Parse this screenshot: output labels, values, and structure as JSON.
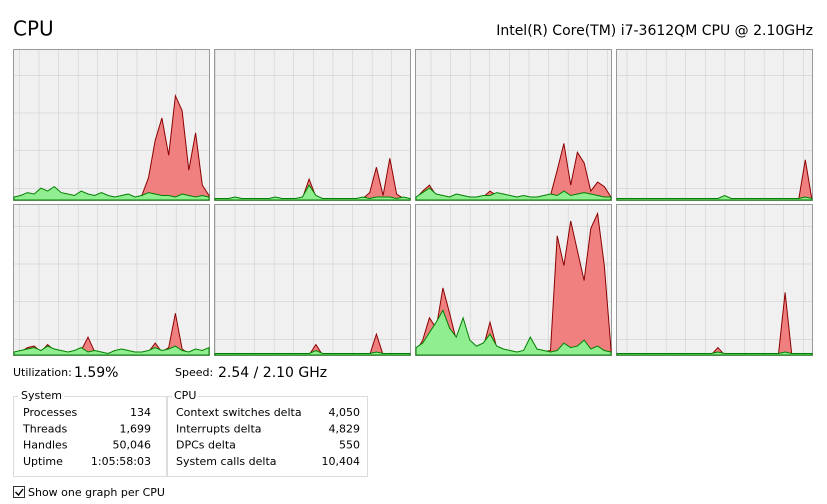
{
  "header": {
    "title": "CPU",
    "processor": "Intel(R) Core(TM) i7-3612QM CPU @ 2.10GHz"
  },
  "chart_data": [
    {
      "type": "area",
      "ylim": [
        0,
        100
      ],
      "series": [
        {
          "color": "#8b0000",
          "values": [
            1,
            2,
            3,
            2,
            5,
            4,
            6,
            3,
            2,
            2,
            3,
            2,
            2,
            3,
            2,
            1,
            2,
            2,
            1,
            3,
            15,
            40,
            55,
            30,
            70,
            60,
            20,
            45,
            10,
            3
          ]
        },
        {
          "color": "#008000",
          "values": [
            2,
            3,
            5,
            4,
            8,
            6,
            9,
            5,
            4,
            3,
            6,
            4,
            3,
            5,
            3,
            2,
            3,
            4,
            2,
            3,
            5,
            4,
            3,
            3,
            2,
            4,
            3,
            2,
            3,
            2
          ]
        }
      ]
    },
    {
      "type": "area",
      "ylim": [
        0,
        100
      ],
      "series": [
        {
          "color": "#8b0000",
          "values": [
            0,
            0,
            0,
            1,
            0,
            0,
            0,
            0,
            0,
            1,
            0,
            0,
            0,
            1,
            14,
            2,
            0,
            0,
            0,
            0,
            0,
            0,
            1,
            5,
            22,
            3,
            28,
            4,
            1,
            0
          ]
        },
        {
          "color": "#008000",
          "values": [
            1,
            1,
            1,
            2,
            1,
            1,
            1,
            1,
            1,
            2,
            1,
            1,
            1,
            2,
            10,
            3,
            1,
            1,
            1,
            1,
            1,
            1,
            2,
            1,
            2,
            2,
            2,
            1,
            2,
            1
          ]
        }
      ]
    },
    {
      "type": "area",
      "ylim": [
        0,
        100
      ],
      "series": [
        {
          "color": "#8b0000",
          "values": [
            1,
            6,
            10,
            3,
            2,
            1,
            2,
            2,
            1,
            1,
            2,
            6,
            3,
            2,
            2,
            1,
            2,
            1,
            2,
            2,
            3,
            20,
            38,
            10,
            32,
            25,
            6,
            12,
            9,
            2
          ]
        },
        {
          "color": "#008000",
          "values": [
            2,
            5,
            8,
            4,
            3,
            2,
            4,
            3,
            2,
            2,
            3,
            3,
            5,
            4,
            3,
            2,
            3,
            2,
            2,
            3,
            4,
            3,
            6,
            3,
            4,
            5,
            4,
            3,
            2,
            2
          ]
        }
      ]
    },
    {
      "type": "area",
      "ylim": [
        0,
        100
      ],
      "series": [
        {
          "color": "#8b0000",
          "values": [
            0,
            0,
            0,
            0,
            0,
            0,
            0,
            0,
            0,
            0,
            0,
            0,
            0,
            0,
            0,
            0,
            1,
            0,
            0,
            0,
            0,
            0,
            0,
            0,
            0,
            0,
            0,
            0,
            27,
            0
          ]
        },
        {
          "color": "#008000",
          "values": [
            1,
            1,
            1,
            1,
            1,
            1,
            1,
            1,
            1,
            1,
            1,
            1,
            1,
            1,
            1,
            1,
            3,
            1,
            1,
            1,
            1,
            1,
            1,
            1,
            1,
            1,
            1,
            1,
            2,
            1
          ]
        }
      ]
    },
    {
      "type": "area",
      "ylim": [
        0,
        100
      ],
      "series": [
        {
          "color": "#8b0000",
          "values": [
            1,
            2,
            5,
            6,
            2,
            7,
            3,
            2,
            1,
            2,
            3,
            12,
            2,
            1,
            1,
            2,
            3,
            2,
            1,
            1,
            2,
            8,
            2,
            5,
            28,
            4,
            1,
            2,
            2,
            3
          ]
        },
        {
          "color": "#008000",
          "values": [
            2,
            3,
            4,
            5,
            3,
            6,
            4,
            3,
            2,
            3,
            5,
            2,
            3,
            2,
            1,
            3,
            4,
            3,
            2,
            2,
            3,
            5,
            3,
            4,
            6,
            3,
            2,
            4,
            3,
            5
          ]
        }
      ]
    },
    {
      "type": "area",
      "ylim": [
        0,
        100
      ],
      "series": [
        {
          "color": "#8b0000",
          "values": [
            0,
            0,
            0,
            0,
            0,
            0,
            0,
            0,
            0,
            0,
            0,
            0,
            0,
            0,
            0,
            7,
            0,
            0,
            0,
            0,
            0,
            0,
            0,
            0,
            14,
            0,
            0,
            0,
            0,
            0
          ]
        },
        {
          "color": "#008000",
          "values": [
            1,
            1,
            1,
            1,
            1,
            1,
            1,
            1,
            1,
            1,
            1,
            1,
            1,
            1,
            1,
            3,
            1,
            1,
            1,
            1,
            1,
            1,
            1,
            1,
            2,
            1,
            1,
            1,
            1,
            1
          ]
        }
      ]
    },
    {
      "type": "area",
      "ylim": [
        0,
        100
      ],
      "series": [
        {
          "color": "#8b0000",
          "values": [
            2,
            10,
            25,
            18,
            45,
            28,
            10,
            20,
            8,
            4,
            5,
            22,
            5,
            3,
            2,
            1,
            2,
            10,
            3,
            2,
            3,
            80,
            60,
            90,
            70,
            50,
            85,
            95,
            60,
            4
          ]
        },
        {
          "color": "#008000",
          "values": [
            5,
            8,
            15,
            22,
            30,
            18,
            12,
            25,
            10,
            6,
            8,
            14,
            6,
            4,
            3,
            2,
            3,
            12,
            4,
            3,
            2,
            3,
            8,
            5,
            6,
            10,
            4,
            6,
            3,
            2
          ]
        }
      ]
    },
    {
      "type": "area",
      "ylim": [
        0,
        100
      ],
      "series": [
        {
          "color": "#8b0000",
          "values": [
            0,
            0,
            0,
            0,
            0,
            0,
            0,
            0,
            0,
            0,
            0,
            0,
            0,
            0,
            0,
            5,
            0,
            0,
            0,
            0,
            0,
            0,
            0,
            0,
            0,
            42,
            0,
            0,
            0,
            0
          ]
        },
        {
          "color": "#008000",
          "values": [
            1,
            1,
            1,
            1,
            1,
            1,
            1,
            1,
            1,
            1,
            1,
            1,
            1,
            1,
            1,
            2,
            1,
            1,
            1,
            1,
            1,
            1,
            1,
            1,
            1,
            2,
            1,
            1,
            1,
            1
          ]
        }
      ]
    }
  ],
  "stats": {
    "utilization_label": "Utilization:",
    "utilization": "1.59%",
    "speed_label": "Speed:",
    "speed": "2.54 / 2.10 GHz"
  },
  "system": {
    "title": "System",
    "rows": [
      [
        "Processes",
        "134"
      ],
      [
        "Threads",
        "1,699"
      ],
      [
        "Handles",
        "50,046"
      ],
      [
        "Uptime",
        "1:05:58:03"
      ]
    ]
  },
  "cpu": {
    "title": "CPU",
    "rows": [
      [
        "Context switches delta",
        "4,050"
      ],
      [
        "Interrupts delta",
        "4,829"
      ],
      [
        "DPCs delta",
        "550"
      ],
      [
        "System calls delta",
        "10,404"
      ]
    ]
  },
  "option": "Show one graph per CPU"
}
